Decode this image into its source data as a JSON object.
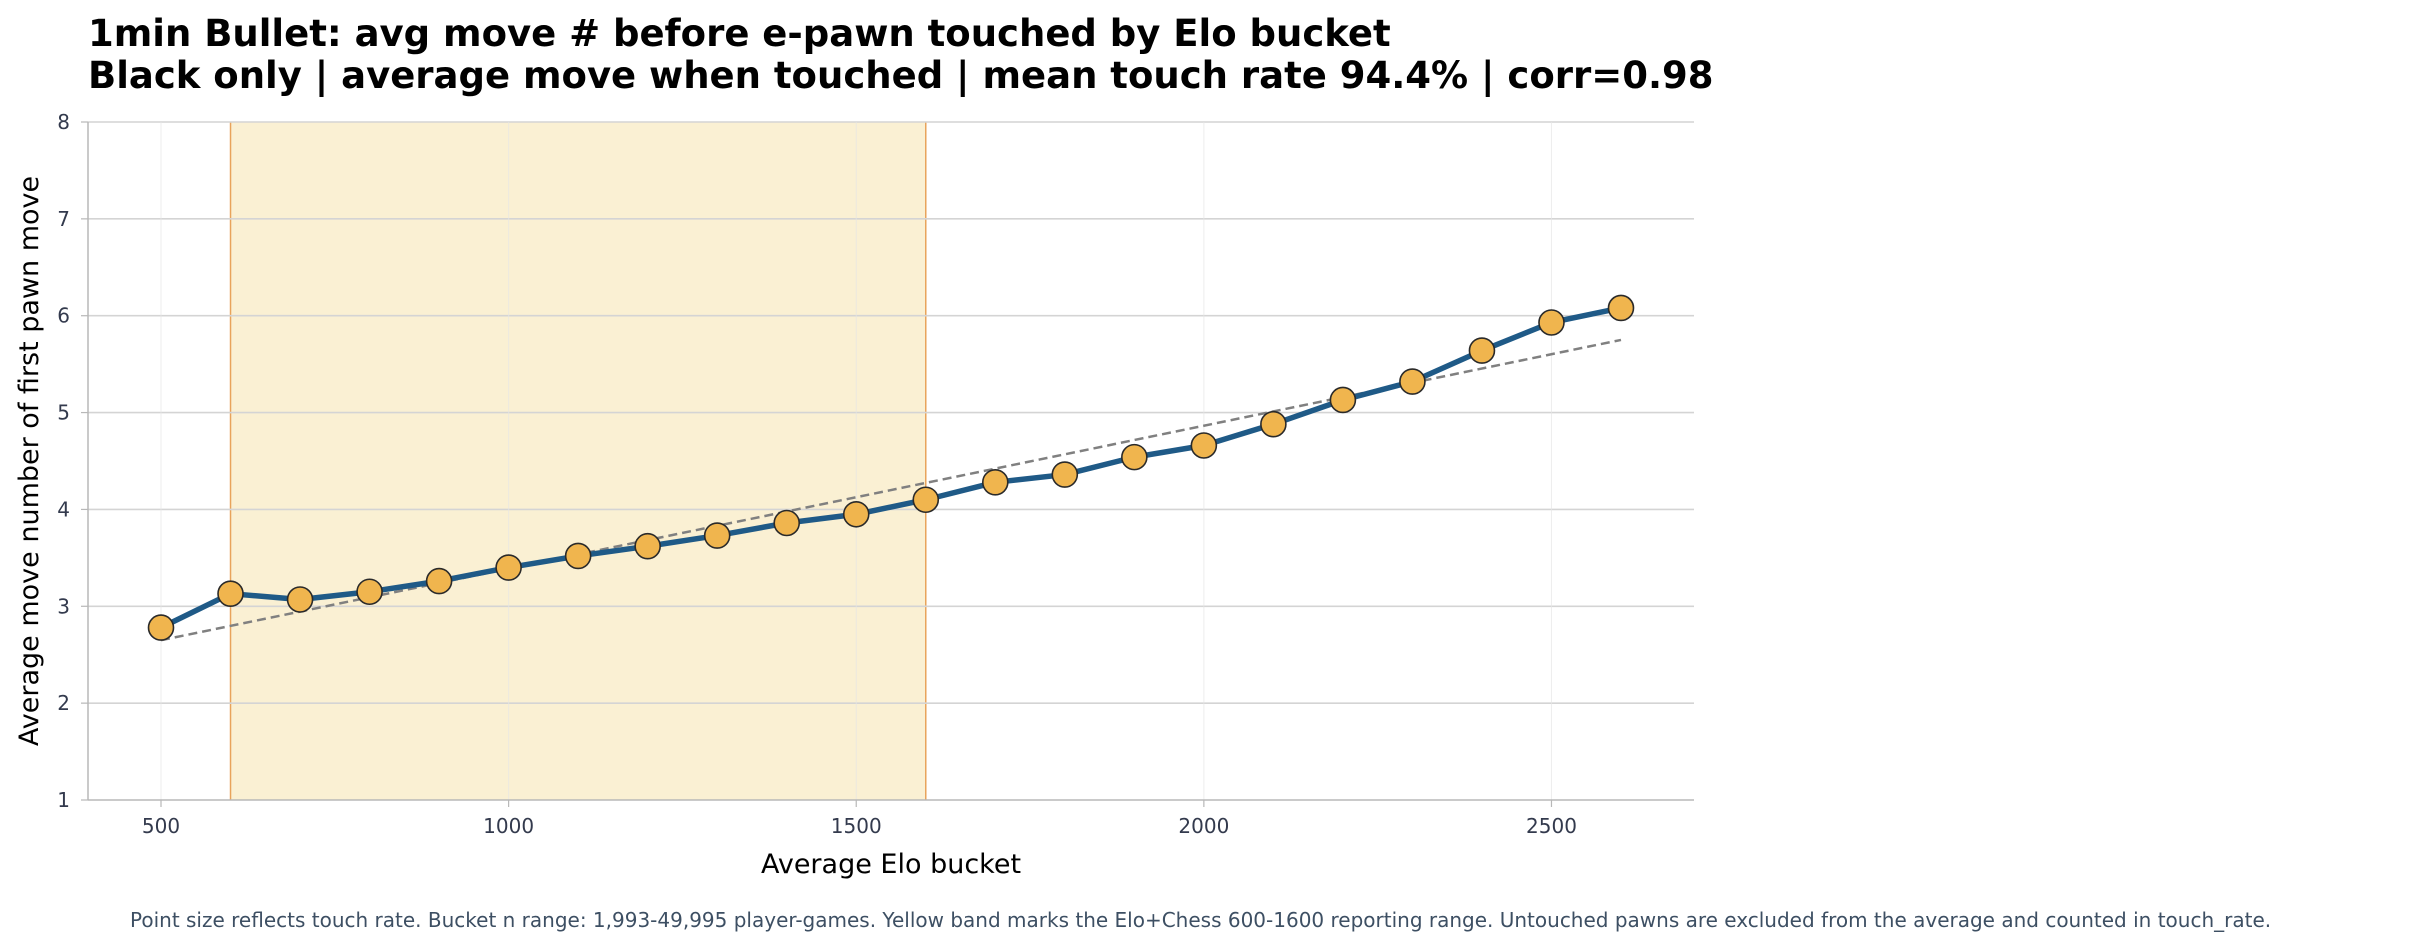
{
  "chart_data": {
    "type": "line",
    "title_line1": "1min Bullet: avg move # before e-pawn touched by Elo bucket",
    "title_line2": "Black only | average move when touched | mean touch rate 94.4% | corr=0.98",
    "xlabel": "Average Elo bucket",
    "ylabel": "Average move number of first pawn move",
    "xlim": [
      395,
      2705
    ],
    "ylim": [
      1,
      8
    ],
    "xticks": [
      500,
      1000,
      1500,
      2000,
      2500
    ],
    "yticks": [
      1,
      2,
      3,
      4,
      5,
      6,
      7,
      8
    ],
    "grid": true,
    "band": {
      "x0": 600,
      "x1": 1600,
      "color": "#faf0d3",
      "edge_color": "#e8a35b"
    },
    "line_color": "#1f5a87",
    "marker_color": "#f0b54e",
    "trend_color": "#808080",
    "series": [
      {
        "x": [
          500,
          600,
          700,
          800,
          900,
          1000,
          1100,
          1200,
          1300,
          1400,
          1500,
          1600,
          1700,
          1800,
          1900,
          2000,
          2100,
          2200,
          2300,
          2400,
          2500,
          2600
        ],
        "values": [
          2.78,
          3.13,
          3.07,
          3.15,
          3.26,
          3.4,
          3.52,
          3.62,
          3.73,
          3.86,
          3.95,
          4.1,
          4.28,
          4.36,
          4.54,
          4.66,
          4.88,
          5.13,
          5.32,
          5.64,
          5.93,
          6.08
        ]
      }
    ],
    "trendline": {
      "x": [
        500,
        2600
      ],
      "y": [
        2.65,
        5.75
      ]
    },
    "footnote": "Point size reflects touch rate. Bucket n range: 1,993-49,995 player-games. Yellow band marks the Elo+Chess 600-1600 reporting range. Untouched pawns are excluded from the average and counted in touch_rate."
  }
}
